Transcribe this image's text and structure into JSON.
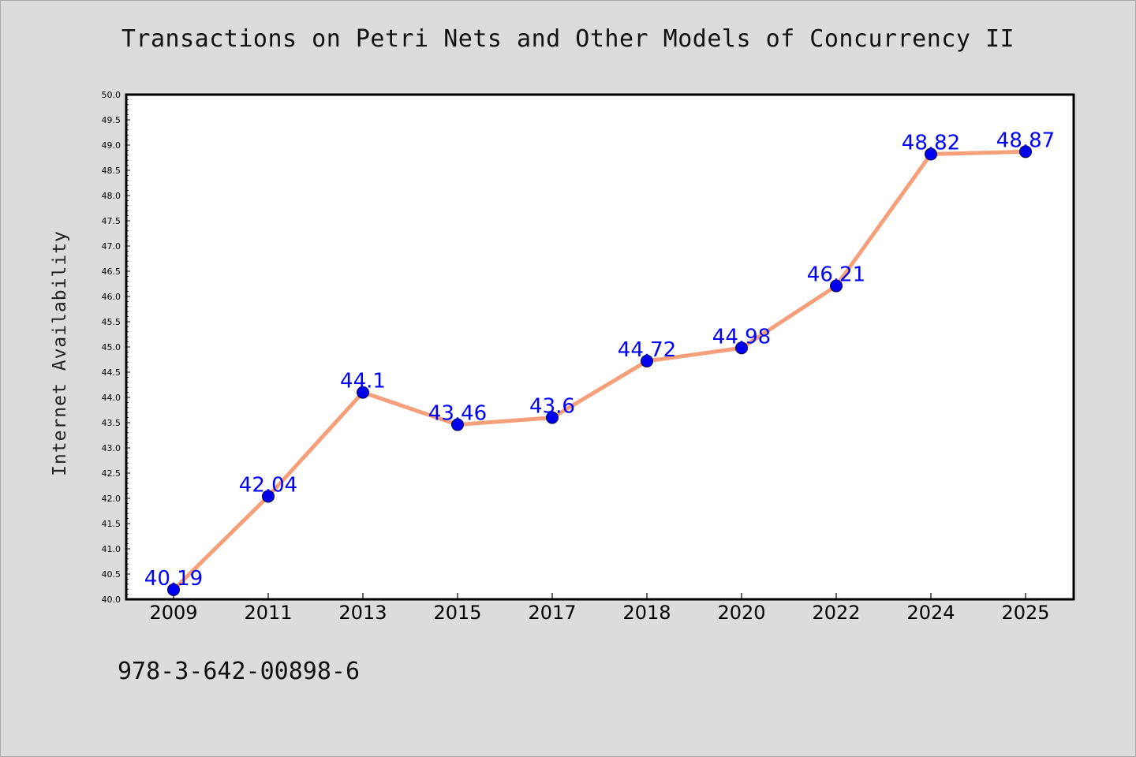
{
  "chart_data": {
    "type": "line",
    "title": "Transactions on Petri Nets and Other Models of Concurrency II",
    "xlabel": "",
    "ylabel": "Internet Availability",
    "categories": [
      "2009",
      "2011",
      "2013",
      "2015",
      "2017",
      "2018",
      "2020",
      "2022",
      "2024",
      "2025"
    ],
    "series": [
      {
        "values": [
          40.19,
          42.04,
          44.1,
          43.46,
          43.6,
          44.72,
          44.98,
          46.21,
          48.82,
          48.87
        ],
        "labels": [
          "40.19",
          "42.04",
          "44.1",
          "43.46",
          "43.6",
          "44.72",
          "44.98",
          "46.21",
          "48.82",
          "48.87"
        ],
        "line_color": "#f5a07a",
        "marker_color": "#0000ee",
        "label_color": "#0000ff"
      }
    ],
    "ylim": [
      40.0,
      50.0
    ],
    "yticks": [
      "40.0",
      "40.5",
      "41.0",
      "41.5",
      "42.0",
      "42.5",
      "43.0",
      "43.5",
      "44.0",
      "44.5",
      "45.0",
      "45.5",
      "46.0",
      "46.5",
      "47.0",
      "47.5",
      "48.0",
      "48.5",
      "49.0",
      "49.5",
      "50.0"
    ],
    "grid": false,
    "legend": "none"
  },
  "footer": {
    "isbn": "978-3-642-00898-6"
  },
  "colors": {
    "background": "#dcdcdc",
    "plot_background": "#ffffff",
    "axis": "#000000"
  }
}
